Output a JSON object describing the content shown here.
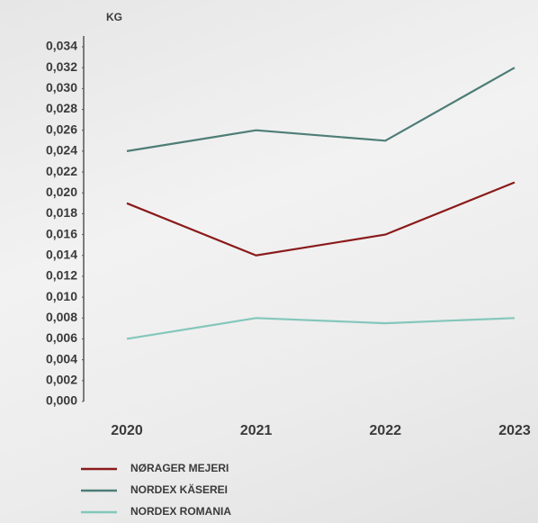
{
  "chart_data": {
    "type": "line",
    "y_label": "KG",
    "categories": [
      "2020",
      "2021",
      "2022",
      "2023"
    ],
    "series": [
      {
        "name": "NØRAGER MEJERI",
        "color": "#8b1a1a",
        "values": [
          0.019,
          0.014,
          0.016,
          0.021
        ]
      },
      {
        "name": "NORDEX KÄSEREI",
        "color": "#4d7d76",
        "values": [
          0.024,
          0.026,
          0.025,
          0.032
        ]
      },
      {
        "name": "NORDEX ROMANIA",
        "color": "#84c7bb",
        "values": [
          0.006,
          0.008,
          0.0075,
          0.008
        ]
      }
    ],
    "ylim": [
      0,
      0.034
    ],
    "yticks": [
      {
        "value": 0,
        "label": "0,000"
      },
      {
        "value": 0.002,
        "label": "0,002"
      },
      {
        "value": 0.004,
        "label": "0,004"
      },
      {
        "value": 0.006,
        "label": "0,006"
      },
      {
        "value": 0.008,
        "label": "0,008"
      },
      {
        "value": 0.01,
        "label": "0,010"
      },
      {
        "value": 0.012,
        "label": "0,012"
      },
      {
        "value": 0.014,
        "label": "0,014"
      },
      {
        "value": 0.016,
        "label": "0,016"
      },
      {
        "value": 0.018,
        "label": "0,018"
      },
      {
        "value": 0.02,
        "label": "0,020"
      },
      {
        "value": 0.022,
        "label": "0,022"
      },
      {
        "value": 0.024,
        "label": "0,024"
      },
      {
        "value": 0.026,
        "label": "0,026"
      },
      {
        "value": 0.028,
        "label": "0,028"
      },
      {
        "value": 0.03,
        "label": "0,030"
      },
      {
        "value": 0.032,
        "label": "0,032"
      },
      {
        "value": 0.034,
        "label": "0,034"
      }
    ],
    "grid": false
  }
}
